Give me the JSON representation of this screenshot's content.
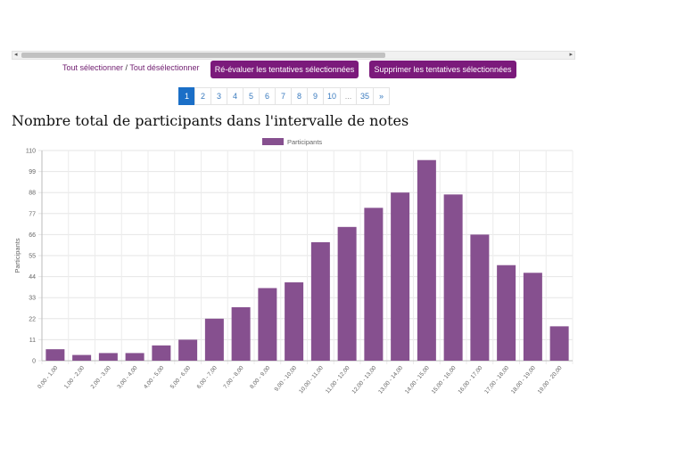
{
  "scrollbar": {
    "left_arrow": "◂",
    "right_arrow": "▸"
  },
  "selection": {
    "select_all": "Tout sélectionner",
    "separator": " / ",
    "deselect_all": "Tout désélectionner"
  },
  "actions": {
    "regrade": "Ré-évaluer les tentatives sélectionnées",
    "delete": "Supprimer les tentatives sélectionnées"
  },
  "pagination": {
    "pages": [
      "1",
      "2",
      "3",
      "4",
      "5",
      "6",
      "7",
      "8",
      "9",
      "10",
      "...",
      "35",
      "»"
    ],
    "active": "1"
  },
  "heading": "Nombre total de participants dans l'intervalle de notes",
  "chart_data": {
    "type": "bar",
    "legend": [
      "Participants"
    ],
    "ylabel": "Participants",
    "xlabel": "",
    "ylim": [
      0,
      110
    ],
    "yticks": [
      0,
      11,
      22,
      33,
      44,
      55,
      66,
      77,
      88,
      99,
      110
    ],
    "grid": true,
    "legend_position": "top",
    "bar_color": "#86508f",
    "categories": [
      "0,00 - 1,00",
      "1,00 - 2,00",
      "2,00 - 3,00",
      "3,00 - 4,00",
      "4,00 - 5,00",
      "5,00 - 6,00",
      "6,00 - 7,00",
      "7,00 - 8,00",
      "8,00 - 9,00",
      "9,00 - 10,00",
      "10,00 - 11,00",
      "11,00 - 12,00",
      "12,00 - 13,00",
      "13,00 - 14,00",
      "14,00 - 15,00",
      "15,00 - 16,00",
      "16,00 - 17,00",
      "17,00 - 18,00",
      "18,00 - 19,00",
      "19,00 - 20,00"
    ],
    "series": [
      {
        "name": "Participants",
        "values": [
          6,
          3,
          4,
          4,
          8,
          11,
          22,
          28,
          38,
          41,
          62,
          70,
          80,
          88,
          105,
          87,
          66,
          50,
          46,
          18
        ]
      }
    ]
  }
}
